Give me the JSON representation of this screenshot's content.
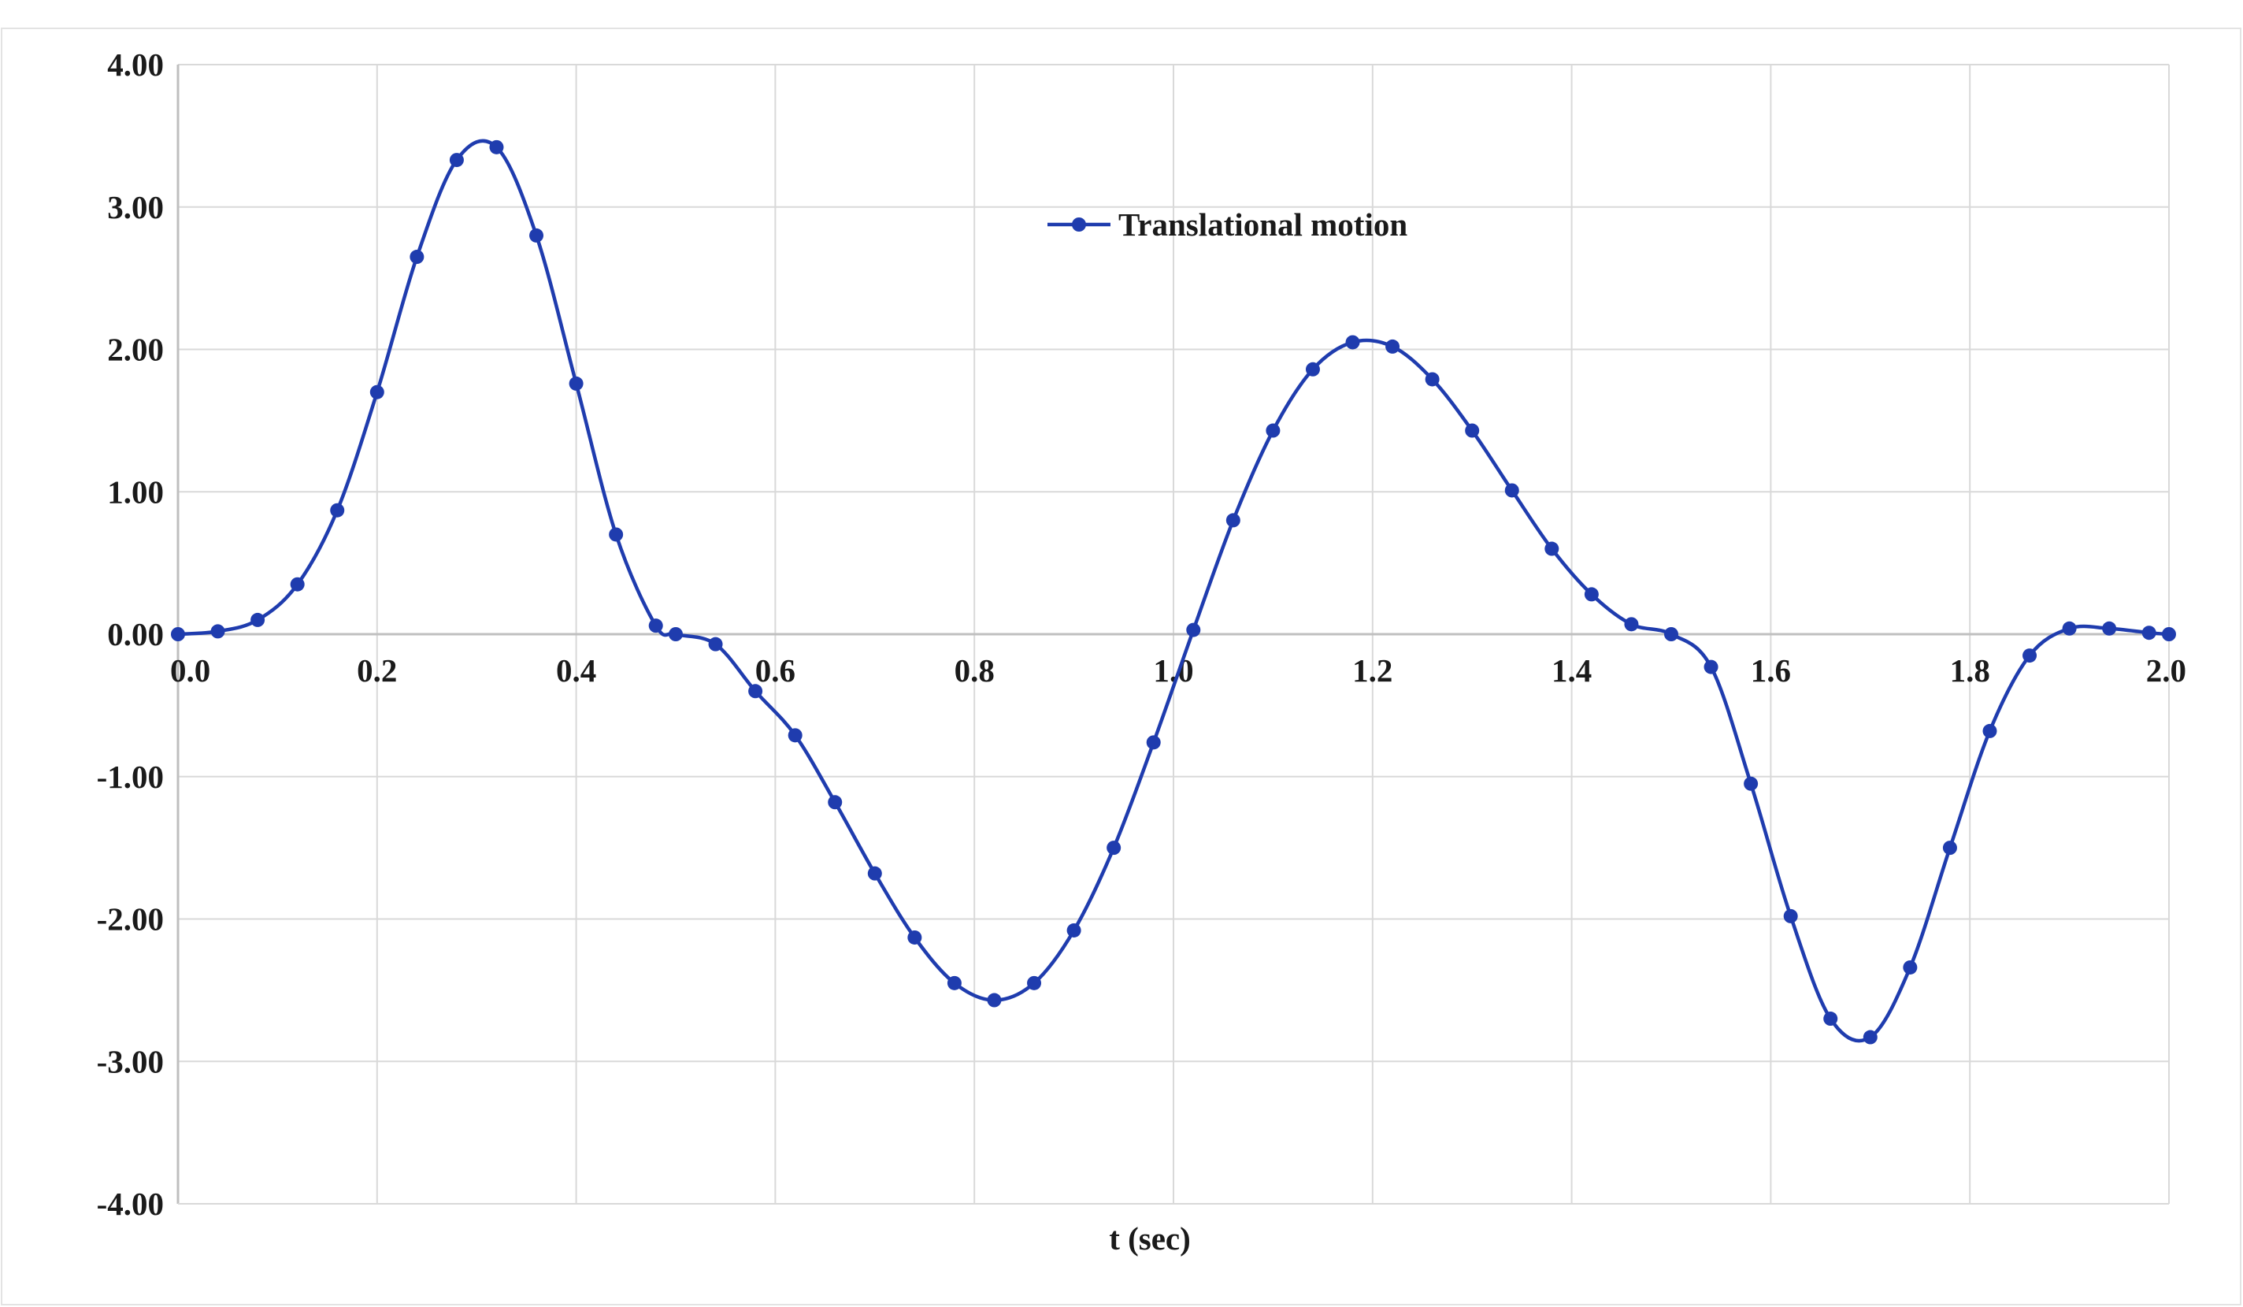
{
  "chart_data": {
    "type": "line",
    "title": "",
    "xlabel": "t (sec)",
    "ylabel": "",
    "xlim": [
      0.0,
      2.0
    ],
    "ylim": [
      -4.0,
      4.0
    ],
    "grid": true,
    "legend": {
      "position": "top-center",
      "entries": [
        "Translational motion"
      ]
    },
    "x_ticks": [
      "0.0",
      "0.2",
      "0.4",
      "0.6",
      "0.8",
      "1.0",
      "1.2",
      "1.4",
      "1.6",
      "1.8",
      "2.0"
    ],
    "y_ticks": [
      "4.00",
      "3.00",
      "2.00",
      "1.00",
      "0.00",
      "-1.00",
      "-2.00",
      "-3.00",
      "-4.00"
    ],
    "series": [
      {
        "name": "Translational motion",
        "color": "#1f3cae",
        "marker": "circle",
        "smooth": true,
        "x": [
          0.0,
          0.04,
          0.08,
          0.12,
          0.16,
          0.2,
          0.24,
          0.28,
          0.32,
          0.36,
          0.4,
          0.44,
          0.48,
          0.5,
          0.54,
          0.58,
          0.62,
          0.66,
          0.7,
          0.74,
          0.78,
          0.82,
          0.86,
          0.9,
          0.94,
          0.98,
          1.02,
          1.06,
          1.1,
          1.14,
          1.18,
          1.22,
          1.26,
          1.3,
          1.34,
          1.38,
          1.42,
          1.46,
          1.5,
          1.54,
          1.58,
          1.62,
          1.66,
          1.7,
          1.74,
          1.78,
          1.82,
          1.86,
          1.9,
          1.94,
          1.98,
          2.0
        ],
        "values": [
          0.0,
          0.02,
          0.1,
          0.35,
          0.87,
          1.7,
          2.65,
          3.33,
          3.42,
          2.8,
          1.76,
          0.7,
          0.06,
          0.0,
          -0.07,
          -0.4,
          -0.71,
          -1.18,
          -1.68,
          -2.13,
          -2.45,
          -2.57,
          -2.45,
          -2.08,
          -1.5,
          -0.76,
          0.03,
          0.8,
          1.43,
          1.86,
          2.05,
          2.02,
          1.79,
          1.43,
          1.01,
          0.6,
          0.28,
          0.07,
          0.0,
          -0.23,
          -1.05,
          -1.98,
          -2.7,
          -2.83,
          -2.34,
          -1.5,
          -0.68,
          -0.15,
          0.04,
          0.04,
          0.01,
          0.0
        ]
      }
    ]
  }
}
